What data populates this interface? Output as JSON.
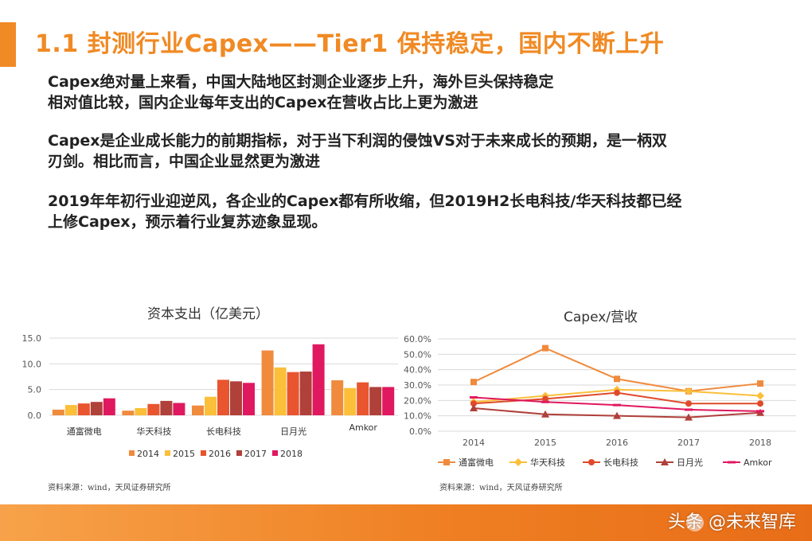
{
  "slide": {
    "title": "1.1 封测行业Capex——Tier1 保持稳定，国内不断上升",
    "paragraphs": [
      [
        "Capex绝对量上来看，中国大陆地区封测企业逐步上升，海外巨头保持稳定",
        "相对值比较，国内企业每年支出的Capex在营收占比上更为激进"
      ],
      [
        "Capex是企业成长能力的前期指标，对于当下利润的侵蚀VS对于未来成长的预期，是一柄双",
        "刃剑。相比而言，中国企业显然更为激进"
      ],
      [
        "2019年年初行业迎逆风，各企业的Capex都有所收缩，但2019H2长电科技/华天科技都已经",
        "上修Capex，预示着行业复苏迹象显现。"
      ]
    ],
    "accent_color": "#f08a24",
    "watermark": "头条 @未来智库"
  },
  "chart_data": [
    {
      "type": "bar",
      "title": "资本支出（亿美元）",
      "categories": [
        "通富微电",
        "华天科技",
        "长电科技",
        "日月光",
        "Amkor"
      ],
      "series": [
        {
          "name": "2014",
          "color": "#f08a3c",
          "values": [
            1.1,
            0.9,
            1.9,
            12.6,
            6.8
          ]
        },
        {
          "name": "2015",
          "color": "#fbbf3a",
          "values": [
            2.0,
            1.4,
            3.6,
            9.3,
            5.3
          ]
        },
        {
          "name": "2016",
          "color": "#e8552e",
          "values": [
            2.3,
            2.2,
            6.9,
            8.4,
            6.4
          ]
        },
        {
          "name": "2017",
          "color": "#b0403a",
          "values": [
            2.6,
            2.8,
            6.6,
            8.5,
            5.5
          ]
        },
        {
          "name": "2018",
          "color": "#e0185f",
          "values": [
            3.3,
            2.4,
            6.3,
            13.8,
            5.5
          ]
        }
      ],
      "yticks": [
        "0.0",
        "5.0",
        "10.0",
        "15.0"
      ],
      "ylim": [
        0,
        15
      ],
      "legend": "bottom",
      "source": "资料来源：wind，天风证券研究所"
    },
    {
      "type": "line",
      "title": "Capex/营收",
      "x": [
        "2014",
        "2015",
        "2016",
        "2017",
        "2018"
      ],
      "series": [
        {
          "name": "通富微电",
          "color": "#f08a3c",
          "marker": "square",
          "values": [
            32,
            54,
            34,
            26,
            31
          ]
        },
        {
          "name": "华天科技",
          "color": "#fbbf3a",
          "marker": "diamond",
          "values": [
            19,
            23,
            27,
            26,
            23
          ]
        },
        {
          "name": "长电科技",
          "color": "#e04a2a",
          "marker": "circle",
          "values": [
            18,
            21,
            25,
            18,
            18
          ]
        },
        {
          "name": "日月光",
          "color": "#b0403a",
          "marker": "triangle",
          "values": [
            15,
            11,
            10,
            9,
            12
          ]
        },
        {
          "name": "Amkor",
          "color": "#e0185f",
          "marker": "dash",
          "values": [
            22,
            19,
            17,
            14,
            13
          ]
        }
      ],
      "yticks": [
        "0.0%",
        "10.0%",
        "20.0%",
        "30.0%",
        "40.0%",
        "50.0%",
        "60.0%"
      ],
      "ylim": [
        0,
        60
      ],
      "legend": "bottom",
      "source": "资料来源：wind，天风证券研究所"
    }
  ]
}
